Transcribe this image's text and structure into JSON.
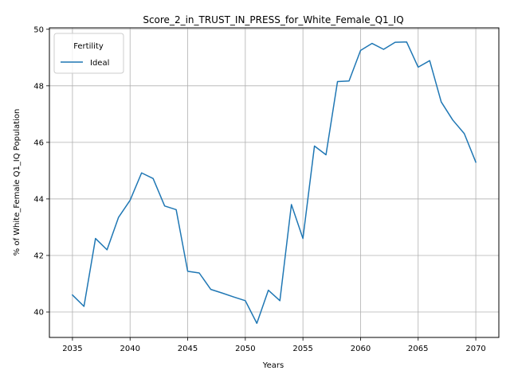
{
  "chart_data": {
    "type": "line",
    "title": "Score_2_in_TRUST_IN_PRESS_for_White_Female_Q1_IQ",
    "xlabel": "Years",
    "ylabel": "% of White_Female Q1_IQ Population",
    "xlim": [
      2033,
      2072
    ],
    "ylim": [
      39.1,
      50.05
    ],
    "xticks": [
      2035,
      2040,
      2045,
      2050,
      2055,
      2060,
      2065,
      2070
    ],
    "yticks": [
      40,
      42,
      44,
      46,
      48,
      50
    ],
    "grid": true,
    "legend": {
      "title": "Fertility",
      "placement": "top-left"
    },
    "series": [
      {
        "name": "Ideal",
        "color": "#1f77b4",
        "x": [
          2035,
          2036,
          2037,
          2038,
          2039,
          2040,
          2041,
          2042,
          2043,
          2044,
          2045,
          2046,
          2047,
          2048,
          2049,
          2050,
          2051,
          2052,
          2053,
          2054,
          2055,
          2056,
          2057,
          2058,
          2059,
          2060,
          2061,
          2062,
          2063,
          2064,
          2065,
          2066,
          2067,
          2068,
          2069,
          2070
        ],
        "y": [
          40.6,
          40.2,
          42.6,
          42.2,
          43.35,
          43.95,
          44.92,
          44.72,
          43.75,
          43.62,
          41.44,
          41.38,
          40.8,
          40.67,
          40.53,
          40.4,
          39.6,
          40.77,
          40.4,
          43.8,
          42.6,
          45.87,
          45.56,
          48.15,
          48.17,
          49.25,
          49.5,
          49.29,
          49.54,
          49.55,
          48.66,
          48.89,
          47.43,
          46.79,
          46.31,
          45.3
        ]
      }
    ]
  }
}
